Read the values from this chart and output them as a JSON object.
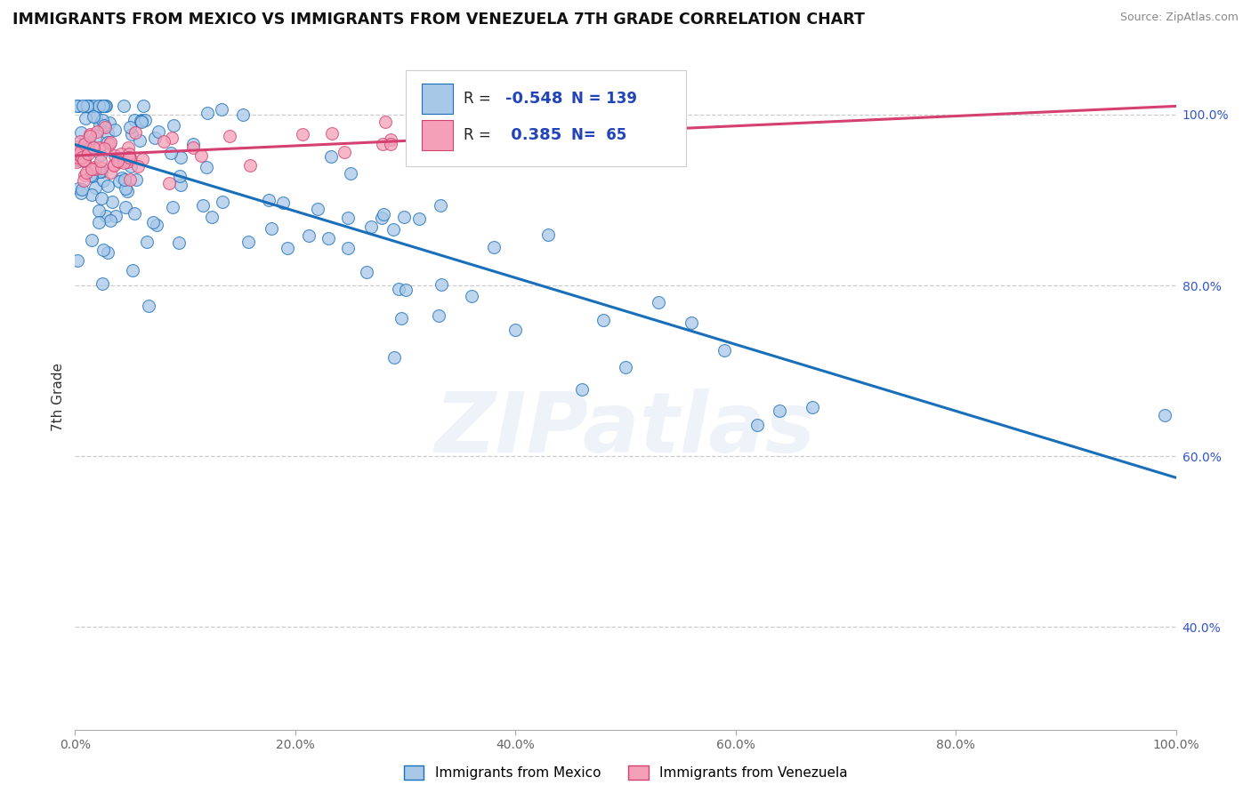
{
  "title": "IMMIGRANTS FROM MEXICO VS IMMIGRANTS FROM VENEZUELA 7TH GRADE CORRELATION CHART",
  "source": "Source: ZipAtlas.com",
  "xlabel_mexico": "Immigrants from Mexico",
  "xlabel_venezuela": "Immigrants from Venezuela",
  "ylabel": "7th Grade",
  "r_mexico": -0.548,
  "n_mexico": 139,
  "r_venezuela": 0.385,
  "n_venezuela": 65,
  "color_mexico": "#a8c8e8",
  "color_venezuela": "#f4a0b8",
  "color_mexico_line": "#1a6fba",
  "color_venezuela_line": "#d44070",
  "watermark": "ZIPatlas",
  "xlim": [
    0.0,
    1.0
  ],
  "ylim": [
    0.28,
    1.06
  ],
  "blue_line_x": [
    0.0,
    1.0
  ],
  "blue_line_y": [
    0.965,
    0.575
  ],
  "pink_line_x": [
    0.0,
    1.0
  ],
  "pink_line_y": [
    0.952,
    1.01
  ],
  "ytick_vals": [
    0.4,
    0.6,
    0.8,
    1.0
  ],
  "ytick_labels": [
    "40.0%",
    "60.0%",
    "80.0%",
    "100.0%"
  ],
  "xtick_vals": [
    0.0,
    0.2,
    0.4,
    0.6,
    0.8,
    1.0
  ],
  "xtick_labels": [
    "0.0%",
    "20.0%",
    "40.0%",
    "60.0%",
    "80.0%",
    "100.0%"
  ]
}
